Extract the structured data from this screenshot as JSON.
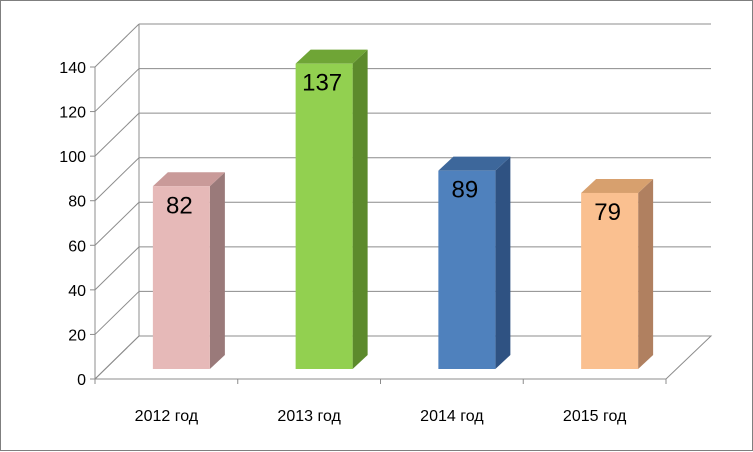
{
  "chart_data": {
    "type": "bar",
    "style": "3d-column",
    "categories": [
      "2012 год",
      "2013 год",
      "2014 год",
      "2015 год"
    ],
    "values": [
      82,
      137,
      89,
      79
    ],
    "data_labels": [
      "82",
      "137",
      "89",
      "79"
    ],
    "colors": [
      "#e6b9b8",
      "#92d050",
      "#4f81bd",
      "#fac090"
    ],
    "side_colors": [
      "#9a7a7a",
      "#5c8a2c",
      "#2f5282",
      "#b08060"
    ],
    "top_colors": [
      "#c99a99",
      "#6fa536",
      "#3d679b",
      "#d7a06e"
    ],
    "ylim": [
      0,
      140
    ],
    "yticks": [
      0,
      20,
      40,
      60,
      80,
      100,
      120,
      140
    ],
    "ytick_labels": [
      "0",
      "20",
      "40",
      "60",
      "80",
      "100",
      "120",
      "140"
    ],
    "grid": true,
    "legend": false,
    "title": "",
    "xlabel": "",
    "ylabel": ""
  }
}
